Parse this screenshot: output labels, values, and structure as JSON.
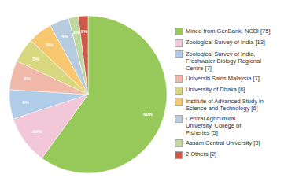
{
  "chart_data": {
    "type": "pie",
    "categories": [
      "Mined from GenBank, NCBI [75]",
      "Zoological Survey of India [13]",
      "Zoological Survey of India,\nFreshwater Biology Regional\nCentre [7]",
      "Universiti Sains Malaysia [7]",
      "University of Dhaka [6]",
      "Institute of Advanced Study in\nScience and Technology [6]",
      "Central Agricultural\nUniversity, College of\nFisheries [5]",
      "Assam Central University [3]",
      "2 Others [2]"
    ],
    "values": [
      60,
      10,
      6,
      6,
      5,
      5,
      4,
      2,
      2
    ],
    "value_labels": [
      "60%",
      "10%",
      "6%",
      "6%",
      "5%",
      "5%",
      "4%",
      "2%",
      "2%"
    ],
    "colors": [
      "#96c85a",
      "#f2c8d8",
      "#b0cce8",
      "#f0b8a8",
      "#d8d880",
      "#f8c870",
      "#b8cce0",
      "#c0d8a0",
      "#d05848"
    ],
    "data_labels": true,
    "legend": "right"
  }
}
